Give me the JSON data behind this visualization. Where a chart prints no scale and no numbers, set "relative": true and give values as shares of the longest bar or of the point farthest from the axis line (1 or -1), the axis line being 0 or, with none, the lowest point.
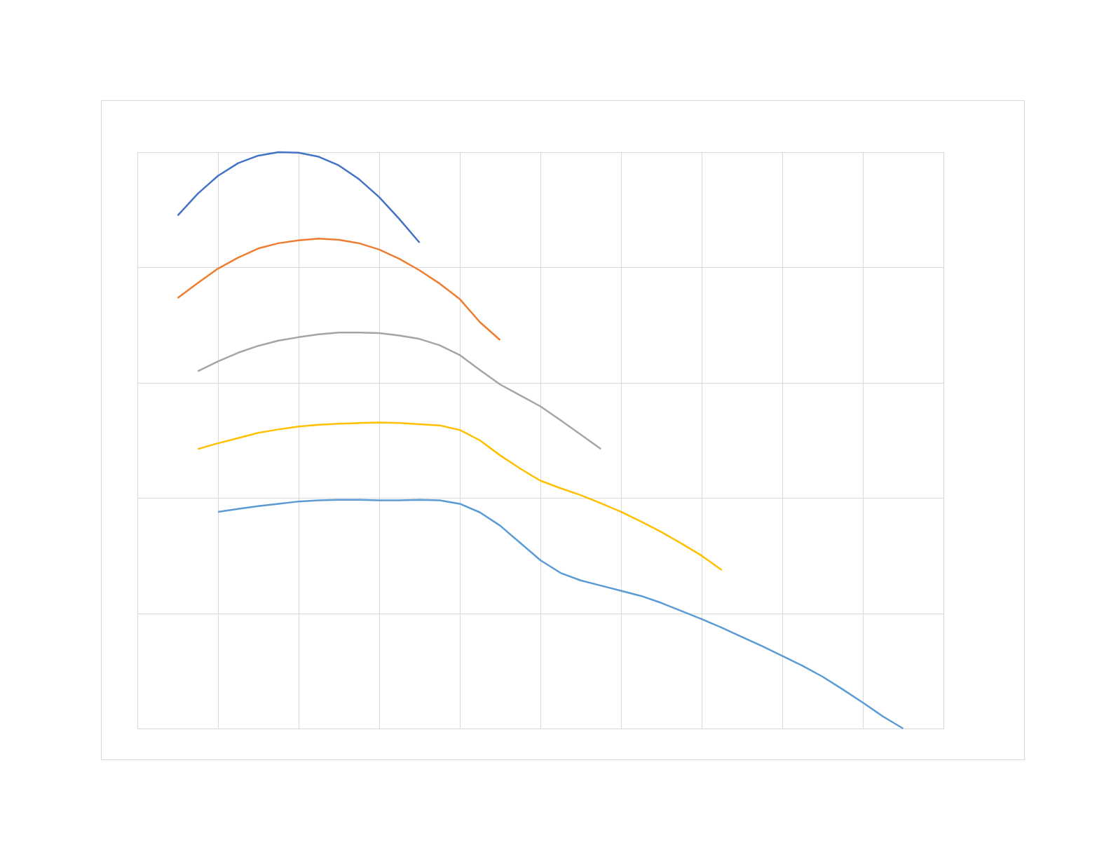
{
  "chart_data": {
    "type": "line",
    "relative": true,
    "grid": true,
    "categories": [
      null,
      null,
      null,
      null,
      null,
      null,
      null,
      null,
      null,
      null,
      null,
      null,
      null,
      null,
      null,
      null,
      null,
      null,
      null,
      null,
      null,
      null,
      null,
      null,
      null,
      null,
      null,
      null,
      null,
      null,
      null,
      null,
      null,
      null,
      null,
      null,
      null,
      null,
      null,
      null,
      null
    ],
    "series": [
      {
        "color": "#4472c4",
        "values": [
          null,
          null,
          0.89,
          0.928,
          0.959,
          0.981,
          0.994,
          1,
          0.999,
          0.992,
          0.977,
          0.953,
          0.922,
          0.884,
          0.843,
          null,
          null,
          null,
          null,
          null,
          null,
          null,
          null,
          null,
          null,
          null,
          null,
          null,
          null,
          null,
          null,
          null,
          null,
          null,
          null,
          null,
          null,
          null,
          null,
          null,
          null
        ]
      },
      {
        "color": "#ed7d31",
        "values": [
          null,
          null,
          0.747,
          0.773,
          0.798,
          0.817,
          0.833,
          0.842,
          0.847,
          0.85,
          0.848,
          0.842,
          0.831,
          0.815,
          0.795,
          0.772,
          0.745,
          0.705,
          0.674,
          null,
          null,
          null,
          null,
          null,
          null,
          null,
          null,
          null,
          null,
          null,
          null,
          null,
          null,
          null,
          null,
          null,
          null,
          null,
          null,
          null,
          null
        ]
      },
      {
        "color": "#a5a5a5",
        "values": [
          null,
          null,
          null,
          0.62,
          0.637,
          0.652,
          0.664,
          0.673,
          0.679,
          0.684,
          0.687,
          0.687,
          0.686,
          0.682,
          0.676,
          0.665,
          0.648,
          0.622,
          0.597,
          0.578,
          0.559,
          0.535,
          0.51,
          0.485,
          null,
          null,
          null,
          null,
          null,
          null,
          null,
          null,
          null,
          null,
          null,
          null,
          null,
          null,
          null,
          null,
          null
        ]
      },
      {
        "color": "#ffc000",
        "values": [
          null,
          null,
          null,
          0.485,
          0.495,
          0.504,
          0.513,
          0.519,
          0.524,
          0.527,
          0.529,
          0.53,
          0.531,
          0.53,
          0.528,
          0.526,
          0.518,
          0.5,
          0.474,
          0.451,
          0.43,
          0.417,
          0.405,
          0.391,
          0.376,
          0.359,
          0.341,
          0.321,
          0.3,
          0.275,
          null,
          null,
          null,
          null,
          null,
          null,
          null,
          null,
          null,
          null,
          null
        ]
      },
      {
        "color": "#5b9bd5",
        "values": [
          null,
          null,
          null,
          null,
          0.376,
          0.381,
          0.386,
          0.39,
          0.394,
          0.396,
          0.397,
          0.397,
          0.396,
          0.396,
          0.397,
          0.396,
          0.39,
          0.375,
          0.352,
          0.322,
          0.292,
          0.27,
          0.257,
          0.248,
          0.239,
          0.23,
          0.218,
          0.204,
          0.19,
          0.175,
          0.159,
          0.143,
          0.126,
          0.109,
          0.09,
          0.068,
          0.045,
          0.021,
          0,
          null,
          null
        ]
      }
    ]
  }
}
